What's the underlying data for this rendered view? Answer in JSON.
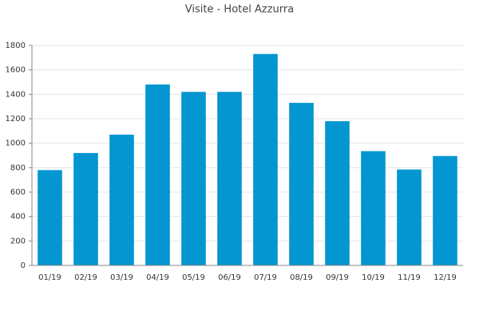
{
  "chart_data": {
    "type": "bar",
    "title": "Visite - Hotel Azzurra",
    "categories": [
      "01/19",
      "02/19",
      "03/19",
      "04/19",
      "05/19",
      "06/19",
      "07/19",
      "08/19",
      "09/19",
      "10/19",
      "11/19",
      "12/19"
    ],
    "values": [
      780,
      920,
      1070,
      1480,
      1420,
      1420,
      1730,
      1330,
      1180,
      935,
      785,
      895
    ],
    "color": "#0396d0",
    "ylim": [
      0,
      1800
    ],
    "yticks": [
      0,
      200,
      400,
      600,
      800,
      1000,
      1200,
      1400,
      1600,
      1800
    ],
    "grid": true
  }
}
